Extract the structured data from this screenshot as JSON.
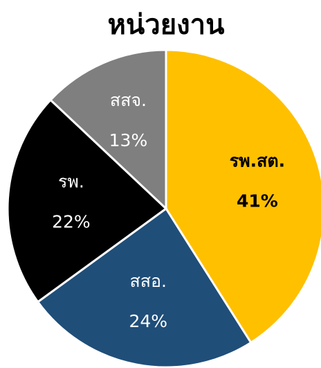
{
  "chart_data": {
    "type": "pie",
    "title": "หน่วยงาน",
    "categories": [
      "รพ.สต.",
      "สสอ.",
      "รพ.",
      "สสจ."
    ],
    "values": [
      41,
      24,
      22,
      13
    ],
    "value_labels": [
      "41%",
      "24%",
      "22%",
      "13%"
    ],
    "colors": [
      "#FFC000",
      "#1F4E79",
      "#000000",
      "#7F7F7F"
    ],
    "label_colors": [
      "#000000",
      "#FFFFFF",
      "#FFFFFF",
      "#FFFFFF"
    ]
  }
}
